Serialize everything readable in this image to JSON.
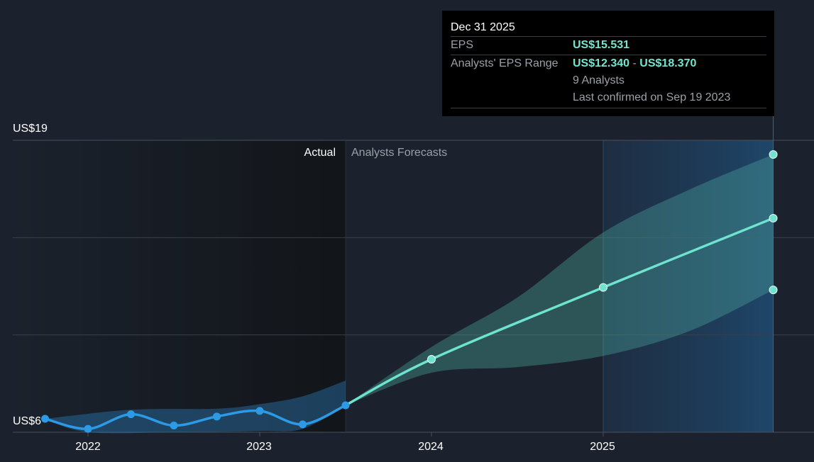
{
  "tooltip": {
    "date": "Dec 31 2025",
    "eps_label": "EPS",
    "eps_value": "US$15.531",
    "range_label": "Analysts' EPS Range",
    "range_low": "US$12.340",
    "range_sep": "-",
    "range_high": "US$18.370",
    "analysts": "9 Analysts",
    "confirmed": "Last confirmed on Sep 19 2023"
  },
  "chart_data": {
    "type": "line",
    "y_max_label": "US$19",
    "y_min_label": "US$6",
    "ylim": [
      6,
      19
    ],
    "x_ticks": [
      "2022",
      "2023",
      "2024",
      "2025"
    ],
    "region_labels": {
      "actual": "Actual",
      "forecast": "Analysts Forecasts"
    },
    "colors": {
      "actual": "#2d9ae6",
      "forecast": "#6ee3cf",
      "actual_band": "#2a75b0",
      "forecast_band": "#4fb3a6",
      "grid": "#3a404a"
    },
    "series": [
      {
        "points": [
          {
            "x": 2021.75,
            "y": 6.6
          },
          {
            "x": 2022.0,
            "y": 6.15
          },
          {
            "x": 2022.25,
            "y": 6.8
          },
          {
            "x": 2022.5,
            "y": 6.3
          },
          {
            "x": 2022.75,
            "y": 6.7
          },
          {
            "x": 2023.0,
            "y": 6.95
          },
          {
            "x": 2023.25,
            "y": 6.35
          },
          {
            "x": 2023.5,
            "y": 7.2
          }
        ]
      },
      {
        "points": [
          {
            "x": 2023.5,
            "y": 7.2
          },
          {
            "x": 2024.0,
            "y": 9.25
          },
          {
            "x": 2025.0,
            "y": 12.45
          },
          {
            "x": 2025.99,
            "y": 15.531
          }
        ],
        "range_high_point": {
          "x": 2025.99,
          "y": 18.37
        },
        "range_low_point": {
          "x": 2025.99,
          "y": 12.34
        }
      }
    ],
    "band_actual": {
      "upper": [
        [
          2021.75,
          6.6
        ],
        [
          2022.25,
          7.0
        ],
        [
          2022.75,
          7.05
        ],
        [
          2023.0,
          7.25
        ],
        [
          2023.25,
          7.6
        ],
        [
          2023.5,
          8.3
        ]
      ],
      "lower": [
        [
          2023.5,
          7.2
        ],
        [
          2023.25,
          6.15
        ],
        [
          2023.0,
          6.05
        ],
        [
          2022.5,
          6.0
        ],
        [
          2022.0,
          6.0
        ],
        [
          2021.75,
          6.6
        ]
      ]
    },
    "band_forecast": {
      "upper": [
        [
          2023.5,
          7.2
        ],
        [
          2024.0,
          9.8
        ],
        [
          2024.5,
          12.0
        ],
        [
          2025.0,
          14.9
        ],
        [
          2025.5,
          16.8
        ],
        [
          2025.99,
          18.37
        ]
      ],
      "lower": [
        [
          2025.99,
          12.34
        ],
        [
          2025.5,
          10.5
        ],
        [
          2025.0,
          9.4
        ],
        [
          2024.5,
          8.9
        ],
        [
          2024.0,
          8.65
        ],
        [
          2023.5,
          7.2
        ]
      ]
    }
  }
}
